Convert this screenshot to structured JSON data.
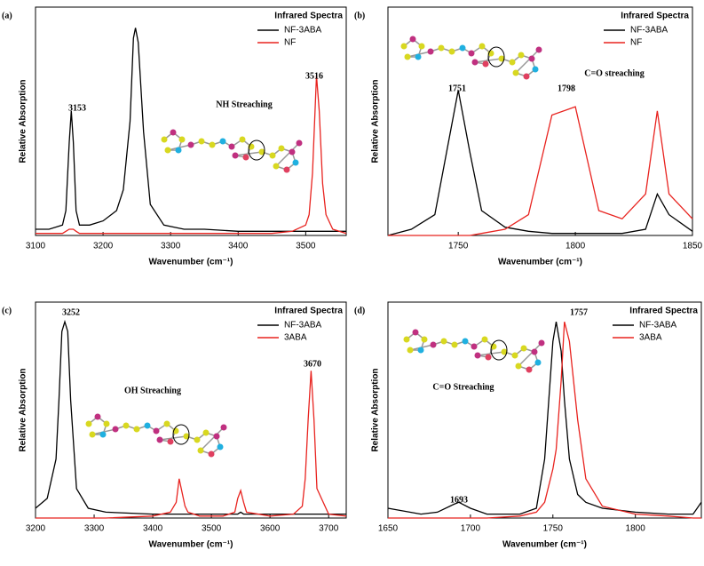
{
  "chart_data": [
    {
      "type": "line",
      "panel_label": "(a)",
      "legend_title": "Infrared Spectra",
      "legend": "top-right",
      "y_label": "Relative Absorption",
      "x_label": "Wavenumber (cm⁻¹)",
      "annotations": [
        "3153",
        "3516",
        "NH Streaching"
      ],
      "x": [
        3100,
        3120,
        3140,
        3145,
        3150,
        3153,
        3156,
        3160,
        3165,
        3180,
        3200,
        3220,
        3230,
        3240,
        3245,
        3248,
        3252,
        3260,
        3270,
        3290,
        3320,
        3350,
        3400,
        3450,
        3480,
        3500,
        3505,
        3510,
        3516,
        3520,
        3525,
        3530,
        3540,
        3560
      ],
      "series": [
        {
          "name": "NF-3ABA",
          "color": "#000000",
          "values": [
            0.03,
            0.03,
            0.05,
            0.12,
            0.45,
            0.6,
            0.45,
            0.12,
            0.05,
            0.05,
            0.07,
            0.12,
            0.22,
            0.55,
            0.95,
            1.0,
            0.93,
            0.5,
            0.15,
            0.05,
            0.03,
            0.03,
            0.02,
            0.02,
            0.02,
            0.02,
            0.02,
            0.02,
            0.02,
            0.02,
            0.02,
            0.02,
            0.02,
            0.02
          ]
        },
        {
          "name": "NF",
          "color": "#e8231f",
          "values": [
            0.01,
            0.01,
            0.01,
            0.02,
            0.03,
            0.03,
            0.03,
            0.02,
            0.01,
            0.01,
            0.01,
            0.01,
            0.01,
            0.01,
            0.01,
            0.01,
            0.01,
            0.01,
            0.01,
            0.01,
            0.01,
            0.01,
            0.01,
            0.01,
            0.02,
            0.05,
            0.1,
            0.3,
            0.77,
            0.6,
            0.25,
            0.1,
            0.03,
            0.01
          ]
        }
      ],
      "xlim": [
        3100,
        3560
      ],
      "xticks": [
        3100,
        3200,
        3300,
        3400,
        3500
      ],
      "ylim": [
        0,
        1.1
      ]
    },
    {
      "type": "line",
      "panel_label": "(b)",
      "legend_title": "Infrared Spectra",
      "legend": "top-right",
      "y_label": "Relative Absorption",
      "x_label": "Wavenumber (cm⁻¹)",
      "annotations": [
        "1751",
        "1798",
        "C=O streaching"
      ],
      "x": [
        1720,
        1730,
        1740,
        1745,
        1750,
        1755,
        1760,
        1770,
        1780,
        1790,
        1800,
        1810,
        1820,
        1830,
        1835,
        1840,
        1850
      ],
      "series": [
        {
          "name": "NF-3ABA",
          "color": "#000000",
          "values": [
            0.0,
            0.03,
            0.1,
            0.4,
            0.7,
            0.4,
            0.12,
            0.04,
            0.02,
            0.01,
            0.01,
            0.01,
            0.01,
            0.03,
            0.2,
            0.1,
            0.02
          ]
        },
        {
          "name": "NF",
          "color": "#e8231f",
          "values": [
            0.0,
            0.0,
            0.0,
            0.0,
            0.0,
            0.0,
            0.01,
            0.03,
            0.1,
            0.58,
            0.62,
            0.12,
            0.08,
            0.2,
            0.6,
            0.2,
            0.08
          ]
        }
      ],
      "xlim": [
        1720,
        1850
      ],
      "xticks": [
        1750,
        1800,
        1850
      ],
      "ylim": [
        0,
        1.1
      ]
    },
    {
      "type": "line",
      "panel_label": "(c)",
      "legend_title": "Infrared Spectra",
      "legend": "top-right",
      "y_label": "Relative Absorption",
      "x_label": "Wavenumber (cm⁻¹)",
      "annotations": [
        "3252",
        "3670",
        "OH Streaching"
      ],
      "x": [
        3200,
        3220,
        3235,
        3240,
        3245,
        3250,
        3255,
        3260,
        3270,
        3290,
        3320,
        3400,
        3430,
        3440,
        3445,
        3450,
        3455,
        3460,
        3480,
        3520,
        3540,
        3545,
        3550,
        3555,
        3560,
        3600,
        3640,
        3655,
        3660,
        3665,
        3670,
        3675,
        3680,
        3700,
        3730
      ],
      "series": [
        {
          "name": "NF-3ABA",
          "color": "#000000",
          "values": [
            0.05,
            0.1,
            0.3,
            0.6,
            0.95,
            1.0,
            0.95,
            0.6,
            0.15,
            0.05,
            0.03,
            0.02,
            0.02,
            0.02,
            0.02,
            0.02,
            0.02,
            0.02,
            0.02,
            0.02,
            0.02,
            0.02,
            0.03,
            0.02,
            0.02,
            0.02,
            0.02,
            0.02,
            0.02,
            0.02,
            0.02,
            0.02,
            0.02,
            0.02,
            0.02
          ]
        },
        {
          "name": "3ABA",
          "color": "#e8231f",
          "values": [
            0,
            0,
            0,
            0,
            0,
            0,
            0,
            0,
            0,
            0,
            0,
            0.01,
            0.03,
            0.08,
            0.2,
            0.13,
            0.06,
            0.03,
            0.01,
            0.01,
            0.03,
            0.1,
            0.14,
            0.08,
            0.03,
            0.01,
            0.02,
            0.06,
            0.2,
            0.5,
            0.75,
            0.5,
            0.15,
            0.02,
            0.01
          ]
        }
      ],
      "xlim": [
        3200,
        3730
      ],
      "xticks": [
        3200,
        3300,
        3400,
        3500,
        3600,
        3700
      ],
      "ylim": [
        0,
        1.1
      ]
    },
    {
      "type": "line",
      "panel_label": "(d)",
      "legend_title": "Infrared Spectra",
      "legend": "top-right",
      "y_label": "Relative Absorption",
      "x_label": "Wavenumber (cm⁻¹)",
      "annotations": [
        "1693",
        "1757",
        "C=O Streaching"
      ],
      "x": [
        1650,
        1670,
        1680,
        1690,
        1693,
        1700,
        1710,
        1730,
        1740,
        1745,
        1750,
        1752,
        1755,
        1757,
        1760,
        1765,
        1770,
        1780,
        1800,
        1820,
        1835,
        1840
      ],
      "series": [
        {
          "name": "NF-3ABA",
          "color": "#000000",
          "values": [
            0.05,
            0.02,
            0.03,
            0.07,
            0.08,
            0.05,
            0.02,
            0.02,
            0.05,
            0.3,
            0.9,
            1.0,
            0.85,
            0.6,
            0.3,
            0.12,
            0.08,
            0.05,
            0.03,
            0.02,
            0.02,
            0.08
          ]
        },
        {
          "name": "3ABA",
          "color": "#e8231f",
          "values": [
            0,
            0,
            0,
            0,
            0,
            0,
            0,
            0.01,
            0.03,
            0.08,
            0.25,
            0.35,
            0.7,
            1.0,
            0.9,
            0.5,
            0.2,
            0.06,
            0.02,
            0.01,
            0,
            0
          ]
        }
      ],
      "xlim": [
        1650,
        1840
      ],
      "xticks": [
        1650,
        1700,
        1750,
        1800
      ],
      "ylim": [
        0,
        1.1
      ]
    }
  ]
}
